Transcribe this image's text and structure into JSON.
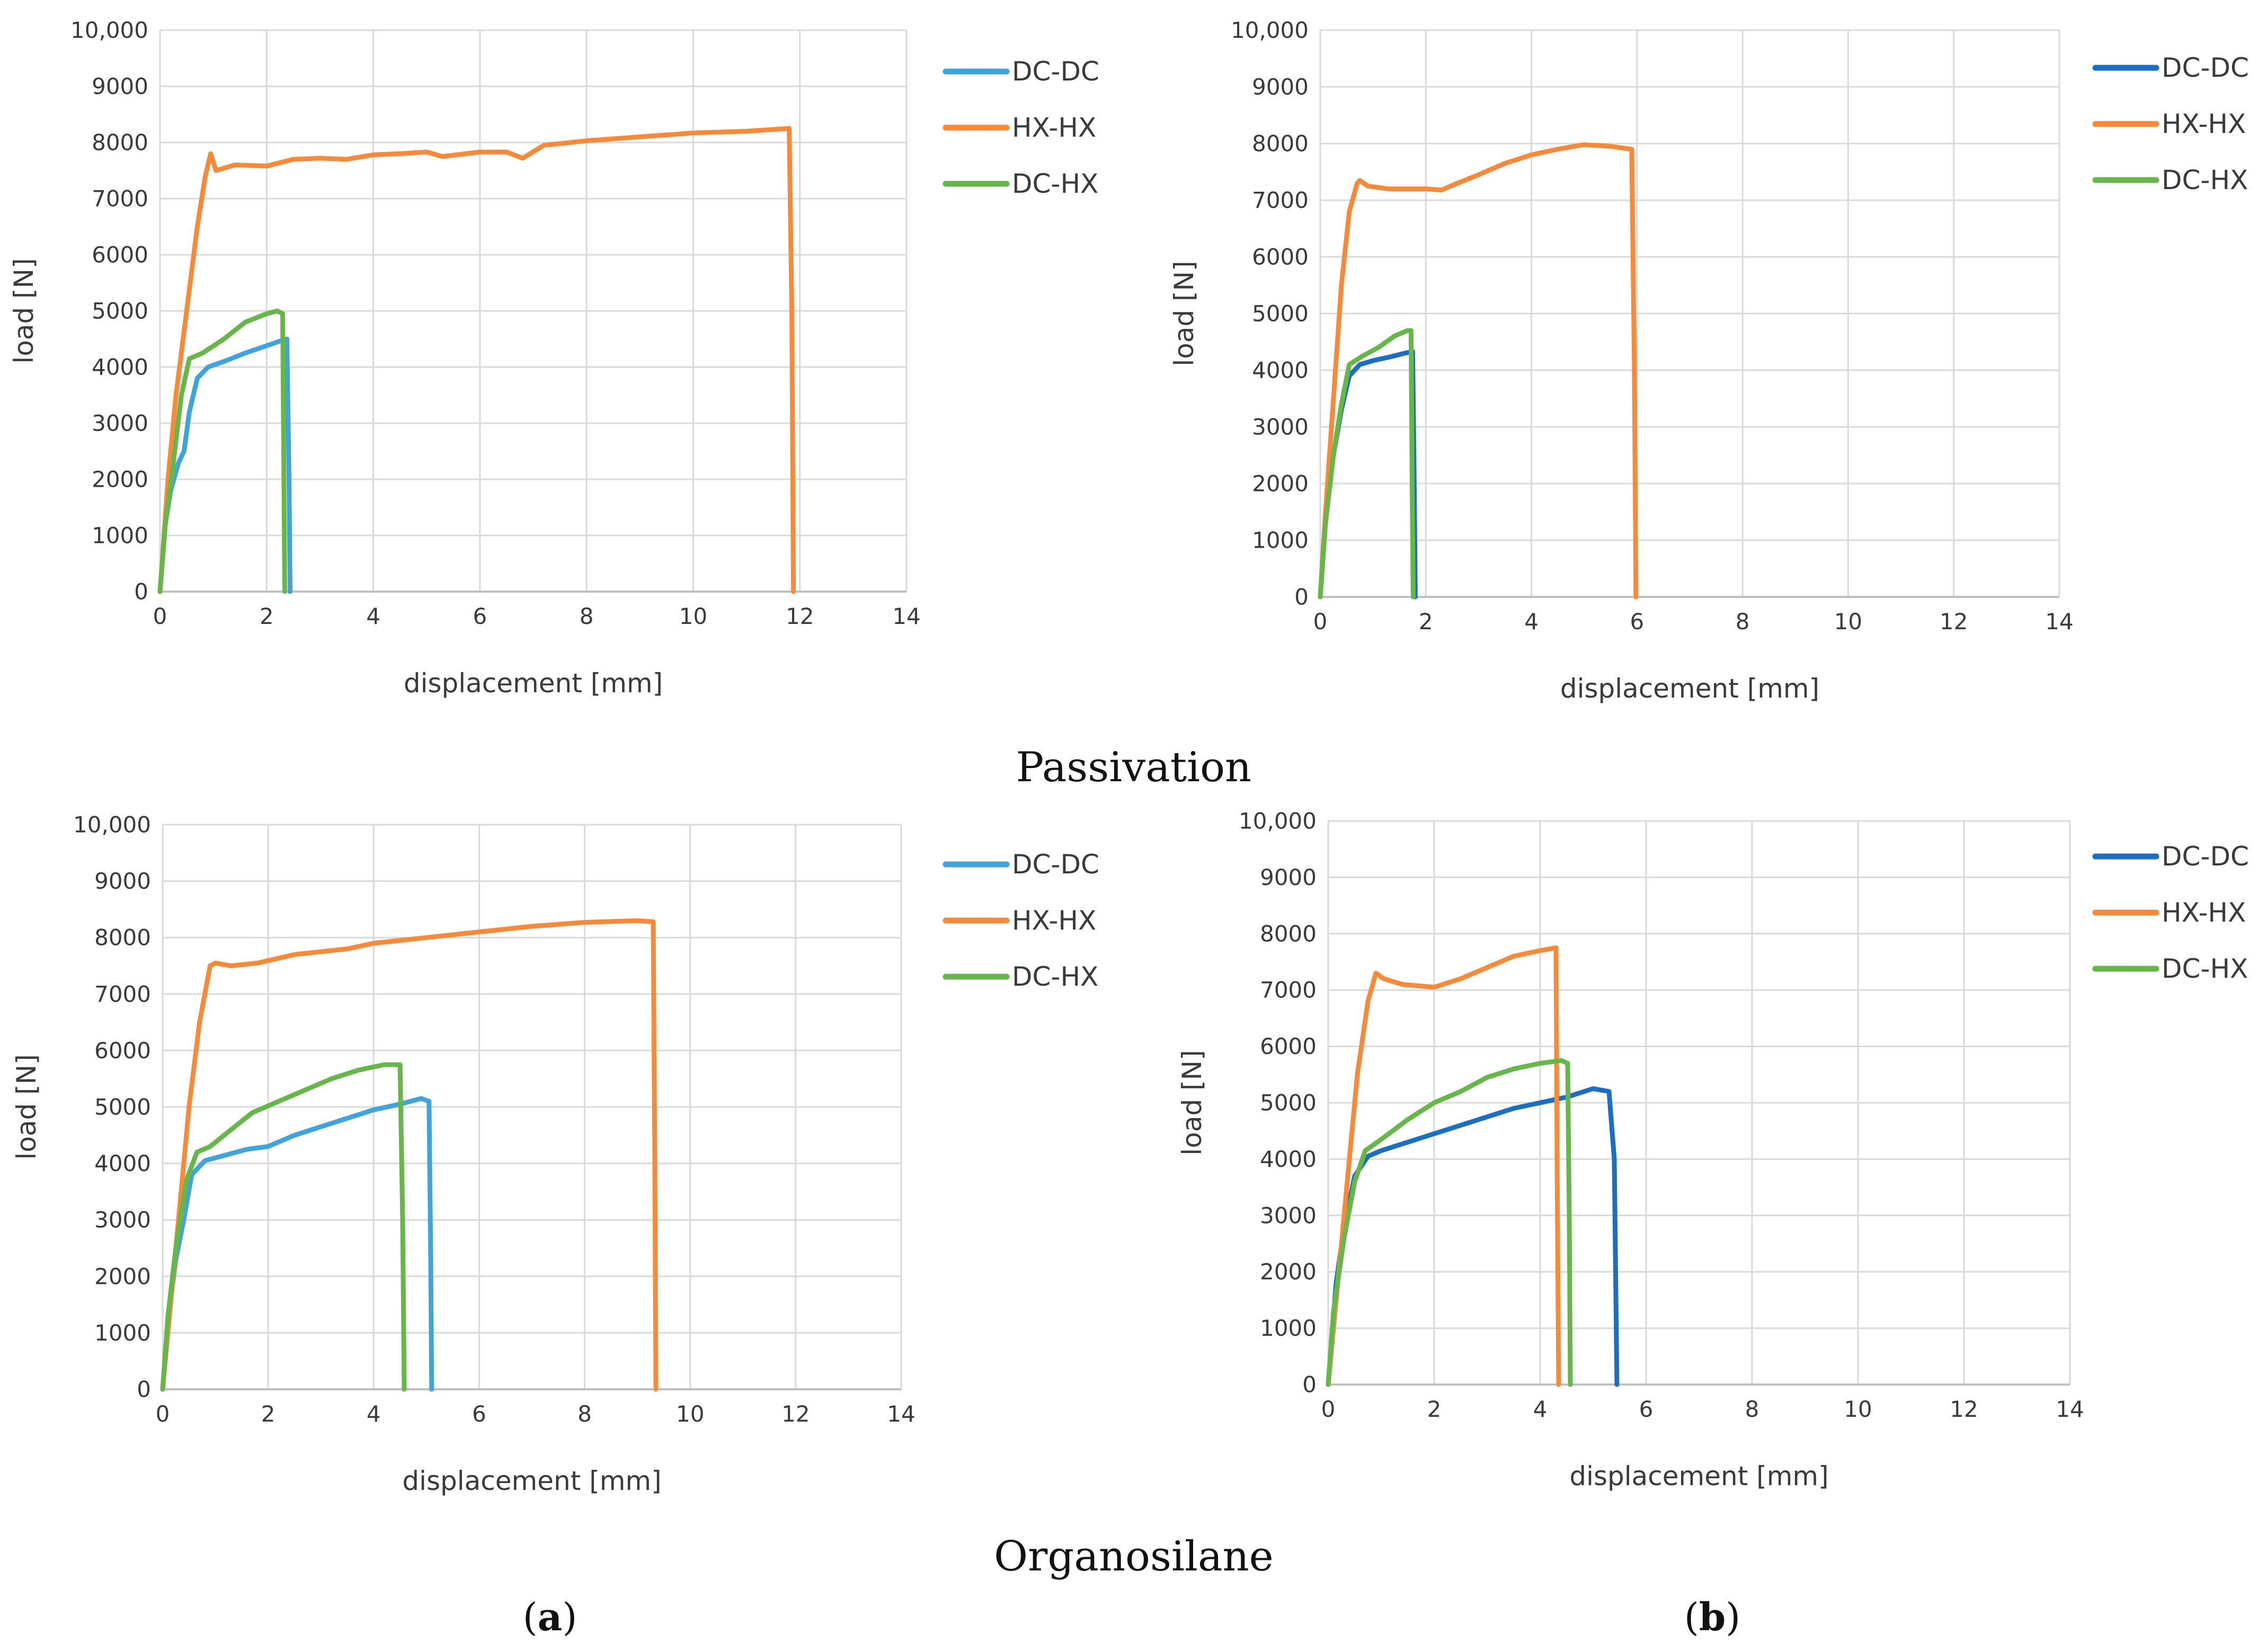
{
  "captions": {
    "row1": "Passivation",
    "row2": "Organosilane",
    "panel_a_open": "(",
    "panel_a_letter": "a",
    "panel_a_close": ")",
    "panel_b_open": "(",
    "panel_b_letter": "b",
    "panel_b_close": ")"
  },
  "chart_data": [
    {
      "type": "line",
      "id": "passivation-a",
      "title": "",
      "xlabel": "displacement [mm]",
      "ylabel": "load [N]",
      "xlim": [
        0,
        14
      ],
      "ylim": [
        0,
        10000
      ],
      "x_ticks": [
        "0",
        "2",
        "4",
        "6",
        "8",
        "10",
        "12",
        "14"
      ],
      "y_ticks": [
        "0",
        "1000",
        "2000",
        "3000",
        "4000",
        "5000",
        "6000",
        "7000",
        "8000",
        "9000",
        "10,000"
      ],
      "grid": true,
      "legend": "right",
      "series": [
        {
          "name": "DC-DC",
          "color": "#41a3dc",
          "points": [
            [
              0,
              0
            ],
            [
              0.1,
              1200
            ],
            [
              0.2,
              1800
            ],
            [
              0.35,
              2300
            ],
            [
              0.45,
              2500
            ],
            [
              0.55,
              3200
            ],
            [
              0.7,
              3800
            ],
            [
              0.9,
              4000
            ],
            [
              1.2,
              4100
            ],
            [
              1.6,
              4250
            ],
            [
              2.0,
              4380
            ],
            [
              2.3,
              4480
            ],
            [
              2.38,
              4500
            ],
            [
              2.42,
              2000
            ],
            [
              2.44,
              0
            ]
          ]
        },
        {
          "name": "HX-HX",
          "color": "#f58a3a",
          "points": [
            [
              0,
              0
            ],
            [
              0.15,
              2000
            ],
            [
              0.3,
              3500
            ],
            [
              0.5,
              5000
            ],
            [
              0.7,
              6500
            ],
            [
              0.85,
              7400
            ],
            [
              0.95,
              7800
            ],
            [
              1.05,
              7500
            ],
            [
              1.4,
              7600
            ],
            [
              2.0,
              7580
            ],
            [
              2.5,
              7700
            ],
            [
              3.0,
              7720
            ],
            [
              3.5,
              7700
            ],
            [
              4.0,
              7780
            ],
            [
              4.5,
              7800
            ],
            [
              5.0,
              7830
            ],
            [
              5.3,
              7750
            ],
            [
              6.0,
              7830
            ],
            [
              6.5,
              7830
            ],
            [
              6.8,
              7720
            ],
            [
              7.2,
              7950
            ],
            [
              8.0,
              8030
            ],
            [
              9.0,
              8100
            ],
            [
              10.0,
              8170
            ],
            [
              11.0,
              8200
            ],
            [
              11.8,
              8250
            ],
            [
              11.85,
              5000
            ],
            [
              11.88,
              0
            ]
          ]
        },
        {
          "name": "DC-HX",
          "color": "#67b64a",
          "points": [
            [
              0,
              0
            ],
            [
              0.1,
              1200
            ],
            [
              0.25,
              2300
            ],
            [
              0.4,
              3500
            ],
            [
              0.55,
              4150
            ],
            [
              0.8,
              4250
            ],
            [
              1.2,
              4500
            ],
            [
              1.6,
              4800
            ],
            [
              2.0,
              4950
            ],
            [
              2.2,
              5000
            ],
            [
              2.3,
              4950
            ],
            [
              2.32,
              2500
            ],
            [
              2.34,
              0
            ]
          ]
        }
      ]
    },
    {
      "type": "line",
      "id": "passivation-b",
      "title": "",
      "xlabel": "displacement [mm]",
      "ylabel": "load [N]",
      "xlim": [
        0,
        14
      ],
      "ylim": [
        0,
        10000
      ],
      "x_ticks": [
        "0",
        "2",
        "4",
        "6",
        "8",
        "10",
        "12",
        "14"
      ],
      "y_ticks": [
        "0",
        "1000",
        "2000",
        "3000",
        "4000",
        "5000",
        "6000",
        "7000",
        "8000",
        "9000",
        "10,000"
      ],
      "grid": true,
      "legend": "right",
      "series": [
        {
          "name": "DC-DC",
          "color": "#1c6fc0",
          "points": [
            [
              0,
              0
            ],
            [
              0.1,
              1500
            ],
            [
              0.25,
              2500
            ],
            [
              0.4,
              3300
            ],
            [
              0.55,
              3900
            ],
            [
              0.75,
              4100
            ],
            [
              1.0,
              4170
            ],
            [
              1.3,
              4230
            ],
            [
              1.6,
              4300
            ],
            [
              1.75,
              4330
            ],
            [
              1.78,
              2000
            ],
            [
              1.8,
              0
            ]
          ]
        },
        {
          "name": "HX-HX",
          "color": "#f58a3a",
          "points": [
            [
              0,
              0
            ],
            [
              0.1,
              1500
            ],
            [
              0.25,
              3500
            ],
            [
              0.4,
              5500
            ],
            [
              0.55,
              6800
            ],
            [
              0.7,
              7300
            ],
            [
              0.75,
              7350
            ],
            [
              0.9,
              7250
            ],
            [
              1.3,
              7200
            ],
            [
              2.0,
              7200
            ],
            [
              2.3,
              7180
            ],
            [
              2.6,
              7300
            ],
            [
              3.0,
              7450
            ],
            [
              3.5,
              7650
            ],
            [
              4.0,
              7800
            ],
            [
              4.5,
              7900
            ],
            [
              5.0,
              7980
            ],
            [
              5.5,
              7950
            ],
            [
              5.9,
              7900
            ],
            [
              5.95,
              4000
            ],
            [
              5.98,
              0
            ]
          ]
        },
        {
          "name": "DC-HX",
          "color": "#67b64a",
          "points": [
            [
              0,
              0
            ],
            [
              0.1,
              1300
            ],
            [
              0.25,
              2500
            ],
            [
              0.4,
              3400
            ],
            [
              0.55,
              4100
            ],
            [
              0.8,
              4250
            ],
            [
              1.1,
              4400
            ],
            [
              1.4,
              4600
            ],
            [
              1.65,
              4700
            ],
            [
              1.72,
              4700
            ],
            [
              1.74,
              2000
            ],
            [
              1.76,
              0
            ]
          ]
        }
      ]
    },
    {
      "type": "line",
      "id": "organosilane-a",
      "title": "",
      "xlabel": "displacement [mm]",
      "ylabel": "load [N]",
      "xlim": [
        0,
        14
      ],
      "ylim": [
        0,
        10000
      ],
      "x_ticks": [
        "0",
        "2",
        "4",
        "6",
        "8",
        "10",
        "12",
        "14"
      ],
      "y_ticks": [
        "0",
        "1000",
        "2000",
        "3000",
        "4000",
        "5000",
        "6000",
        "7000",
        "8000",
        "9000",
        "10,000"
      ],
      "grid": true,
      "legend": "right",
      "series": [
        {
          "name": "DC-DC",
          "color": "#41a3dc",
          "points": [
            [
              0,
              0
            ],
            [
              0.1,
              1200
            ],
            [
              0.25,
              2300
            ],
            [
              0.4,
              3000
            ],
            [
              0.55,
              3800
            ],
            [
              0.8,
              4050
            ],
            [
              1.2,
              4150
            ],
            [
              1.6,
              4250
            ],
            [
              2.0,
              4300
            ],
            [
              2.5,
              4500
            ],
            [
              3.0,
              4650
            ],
            [
              3.5,
              4800
            ],
            [
              4.0,
              4950
            ],
            [
              4.5,
              5050
            ],
            [
              4.9,
              5150
            ],
            [
              5.05,
              5100
            ],
            [
              5.08,
              2500
            ],
            [
              5.1,
              0
            ]
          ]
        },
        {
          "name": "HX-HX",
          "color": "#f58a3a",
          "points": [
            [
              0,
              0
            ],
            [
              0.15,
              1500
            ],
            [
              0.3,
              3000
            ],
            [
              0.5,
              5000
            ],
            [
              0.7,
              6500
            ],
            [
              0.9,
              7500
            ],
            [
              1.0,
              7550
            ],
            [
              1.3,
              7500
            ],
            [
              1.8,
              7550
            ],
            [
              2.5,
              7700
            ],
            [
              3.0,
              7750
            ],
            [
              3.5,
              7800
            ],
            [
              4.0,
              7900
            ],
            [
              5.0,
              8000
            ],
            [
              6.0,
              8100
            ],
            [
              7.0,
              8200
            ],
            [
              8.0,
              8270
            ],
            [
              9.0,
              8300
            ],
            [
              9.3,
              8280
            ],
            [
              9.33,
              4000
            ],
            [
              9.35,
              0
            ]
          ]
        },
        {
          "name": "DC-HX",
          "color": "#67b64a",
          "points": [
            [
              0,
              0
            ],
            [
              0.1,
              1300
            ],
            [
              0.25,
              2500
            ],
            [
              0.45,
              3700
            ],
            [
              0.65,
              4200
            ],
            [
              0.9,
              4300
            ],
            [
              1.3,
              4600
            ],
            [
              1.7,
              4900
            ],
            [
              2.2,
              5100
            ],
            [
              2.7,
              5300
            ],
            [
              3.2,
              5500
            ],
            [
              3.7,
              5650
            ],
            [
              4.2,
              5750
            ],
            [
              4.5,
              5750
            ],
            [
              4.55,
              3000
            ],
            [
              4.58,
              0
            ]
          ]
        }
      ]
    },
    {
      "type": "line",
      "id": "organosilane-b",
      "title": "",
      "xlabel": "displacement [mm]",
      "ylabel": "load [N]",
      "xlim": [
        0,
        14
      ],
      "ylim": [
        0,
        10000
      ],
      "x_ticks": [
        "0",
        "2",
        "4",
        "6",
        "8",
        "10",
        "12",
        "14"
      ],
      "y_ticks": [
        "0",
        "1000",
        "2000",
        "3000",
        "4000",
        "5000",
        "6000",
        "7000",
        "8000",
        "9000",
        "10,000"
      ],
      "grid": true,
      "legend": "right",
      "series": [
        {
          "name": "DC-DC",
          "color": "#1c6fc0",
          "points": [
            [
              0,
              0
            ],
            [
              0.15,
              1800
            ],
            [
              0.3,
              2800
            ],
            [
              0.5,
              3700
            ],
            [
              0.75,
              4050
            ],
            [
              1.0,
              4150
            ],
            [
              1.5,
              4300
            ],
            [
              2.0,
              4450
            ],
            [
              2.5,
              4600
            ],
            [
              3.0,
              4750
            ],
            [
              3.5,
              4900
            ],
            [
              4.0,
              5000
            ],
            [
              4.5,
              5100
            ],
            [
              5.0,
              5250
            ],
            [
              5.3,
              5200
            ],
            [
              5.4,
              4000
            ],
            [
              5.45,
              0
            ]
          ]
        },
        {
          "name": "HX-HX",
          "color": "#f58a3a",
          "points": [
            [
              0,
              0
            ],
            [
              0.15,
              1500
            ],
            [
              0.35,
              3500
            ],
            [
              0.55,
              5500
            ],
            [
              0.75,
              6800
            ],
            [
              0.9,
              7300
            ],
            [
              1.05,
              7200
            ],
            [
              1.4,
              7100
            ],
            [
              2.0,
              7050
            ],
            [
              2.5,
              7200
            ],
            [
              3.0,
              7400
            ],
            [
              3.5,
              7600
            ],
            [
              4.0,
              7700
            ],
            [
              4.3,
              7750
            ],
            [
              4.32,
              4000
            ],
            [
              4.35,
              0
            ]
          ]
        },
        {
          "name": "DC-HX",
          "color": "#67b64a",
          "points": [
            [
              0,
              0
            ],
            [
              0.1,
              1300
            ],
            [
              0.3,
              2600
            ],
            [
              0.5,
              3600
            ],
            [
              0.7,
              4150
            ],
            [
              1.0,
              4350
            ],
            [
              1.5,
              4700
            ],
            [
              2.0,
              5000
            ],
            [
              2.5,
              5200
            ],
            [
              3.0,
              5450
            ],
            [
              3.5,
              5600
            ],
            [
              4.0,
              5700
            ],
            [
              4.4,
              5750
            ],
            [
              4.52,
              5700
            ],
            [
              4.55,
              3000
            ],
            [
              4.57,
              0
            ]
          ]
        }
      ]
    }
  ]
}
